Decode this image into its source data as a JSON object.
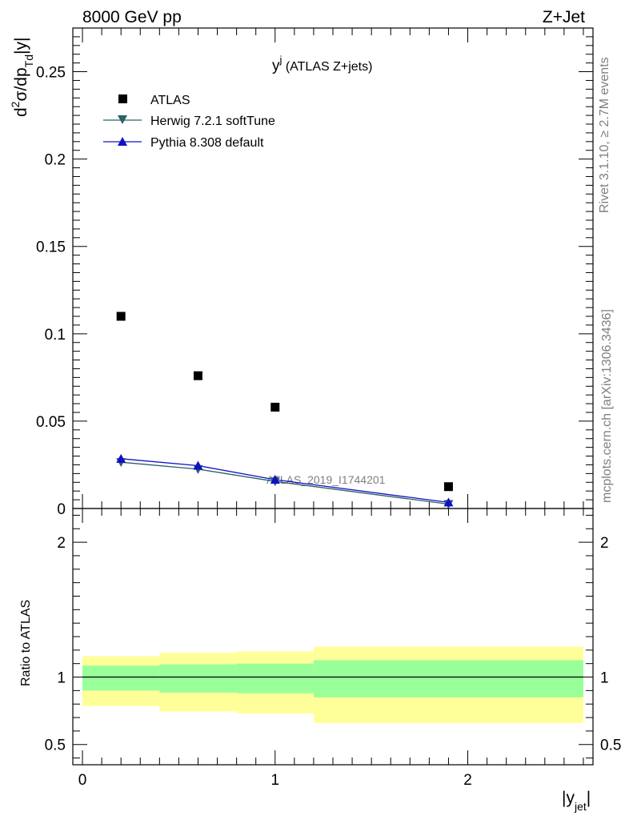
{
  "header": {
    "left": "8000 GeV pp",
    "right": "Z+Jet"
  },
  "side_text": {
    "rivet": "Rivet 3.1.10, ≥ 2.7M events",
    "mcplots": "mcplots.cern.ch [arXiv:1306.3436]"
  },
  "chart_data": [
    {
      "type": "scatter",
      "title_main": "y",
      "title_sup": "j",
      "title_rest": " (ATLAS Z+jets)",
      "ylabel": {
        "d": "d",
        "two": "2",
        "sigma": "σ/dp",
        "sub": "Td",
        "rest": "|y|"
      },
      "ylim": [
        0,
        0.275
      ],
      "xlim": [
        -0.05,
        2.65
      ],
      "yticks": [
        {
          "v": 0,
          "label": "0"
        },
        {
          "v": 0.05,
          "label": "0.05"
        },
        {
          "v": 0.1,
          "label": "0.1"
        },
        {
          "v": 0.15,
          "label": "0.15"
        },
        {
          "v": 0.2,
          "label": "0.2"
        },
        {
          "v": 0.25,
          "label": "0.25"
        }
      ],
      "watermark": "ATLAS_2019_I1744201",
      "legend": [
        "ATLAS",
        "Herwig 7.2.1 softTune",
        "Pythia 8.308 default"
      ],
      "series": [
        {
          "name": "ATLAS",
          "color": "#000000",
          "marker": "square",
          "x": [
            0.2,
            0.6,
            1.0,
            1.9
          ],
          "y": [
            0.11,
            0.076,
            0.058,
            0.0125
          ]
        },
        {
          "name": "Herwig 7.2.1 softTune",
          "color": "#2a6066",
          "marker": "triangle-down",
          "x": [
            0.2,
            0.6,
            1.0,
            1.9
          ],
          "y": [
            0.0265,
            0.0225,
            0.0155,
            0.0025
          ]
        },
        {
          "name": "Pythia 8.308 default",
          "color": "#1010c8",
          "marker": "triangle-up",
          "x": [
            0.2,
            0.6,
            1.0,
            1.9
          ],
          "y": [
            0.0285,
            0.0245,
            0.0165,
            0.0035
          ]
        }
      ]
    },
    {
      "type": "area",
      "ylabel": "Ratio to ATLAS",
      "xlabel_main": "|y",
      "xlabel_sub": "jet",
      "xlabel_end": "|",
      "ylim": [
        0.35,
        2.25
      ],
      "xlim": [
        -0.05,
        2.65
      ],
      "yticks": [
        {
          "v": 0.5,
          "label": "0.5"
        },
        {
          "v": 1,
          "label": "1"
        },
        {
          "v": 2,
          "label": "2"
        }
      ],
      "xticks": [
        {
          "v": 0,
          "label": "0"
        },
        {
          "v": 1,
          "label": "1"
        },
        {
          "v": 2,
          "label": "2"
        }
      ],
      "reference": 1.0,
      "bins": [
        {
          "lo": 0.0,
          "hi": 0.4,
          "inner": [
            0.9,
            1.085
          ],
          "outer": [
            0.785,
            1.155
          ]
        },
        {
          "lo": 0.4,
          "hi": 0.8,
          "inner": [
            0.885,
            1.095
          ],
          "outer": [
            0.745,
            1.18
          ]
        },
        {
          "lo": 0.8,
          "hi": 1.2,
          "inner": [
            0.88,
            1.1
          ],
          "outer": [
            0.73,
            1.19
          ]
        },
        {
          "lo": 1.2,
          "hi": 2.6,
          "inner": [
            0.85,
            1.125
          ],
          "outer": [
            0.66,
            1.225
          ]
        }
      ],
      "colors": {
        "inner": "#99ff99",
        "outer": "#ffff99"
      }
    }
  ]
}
